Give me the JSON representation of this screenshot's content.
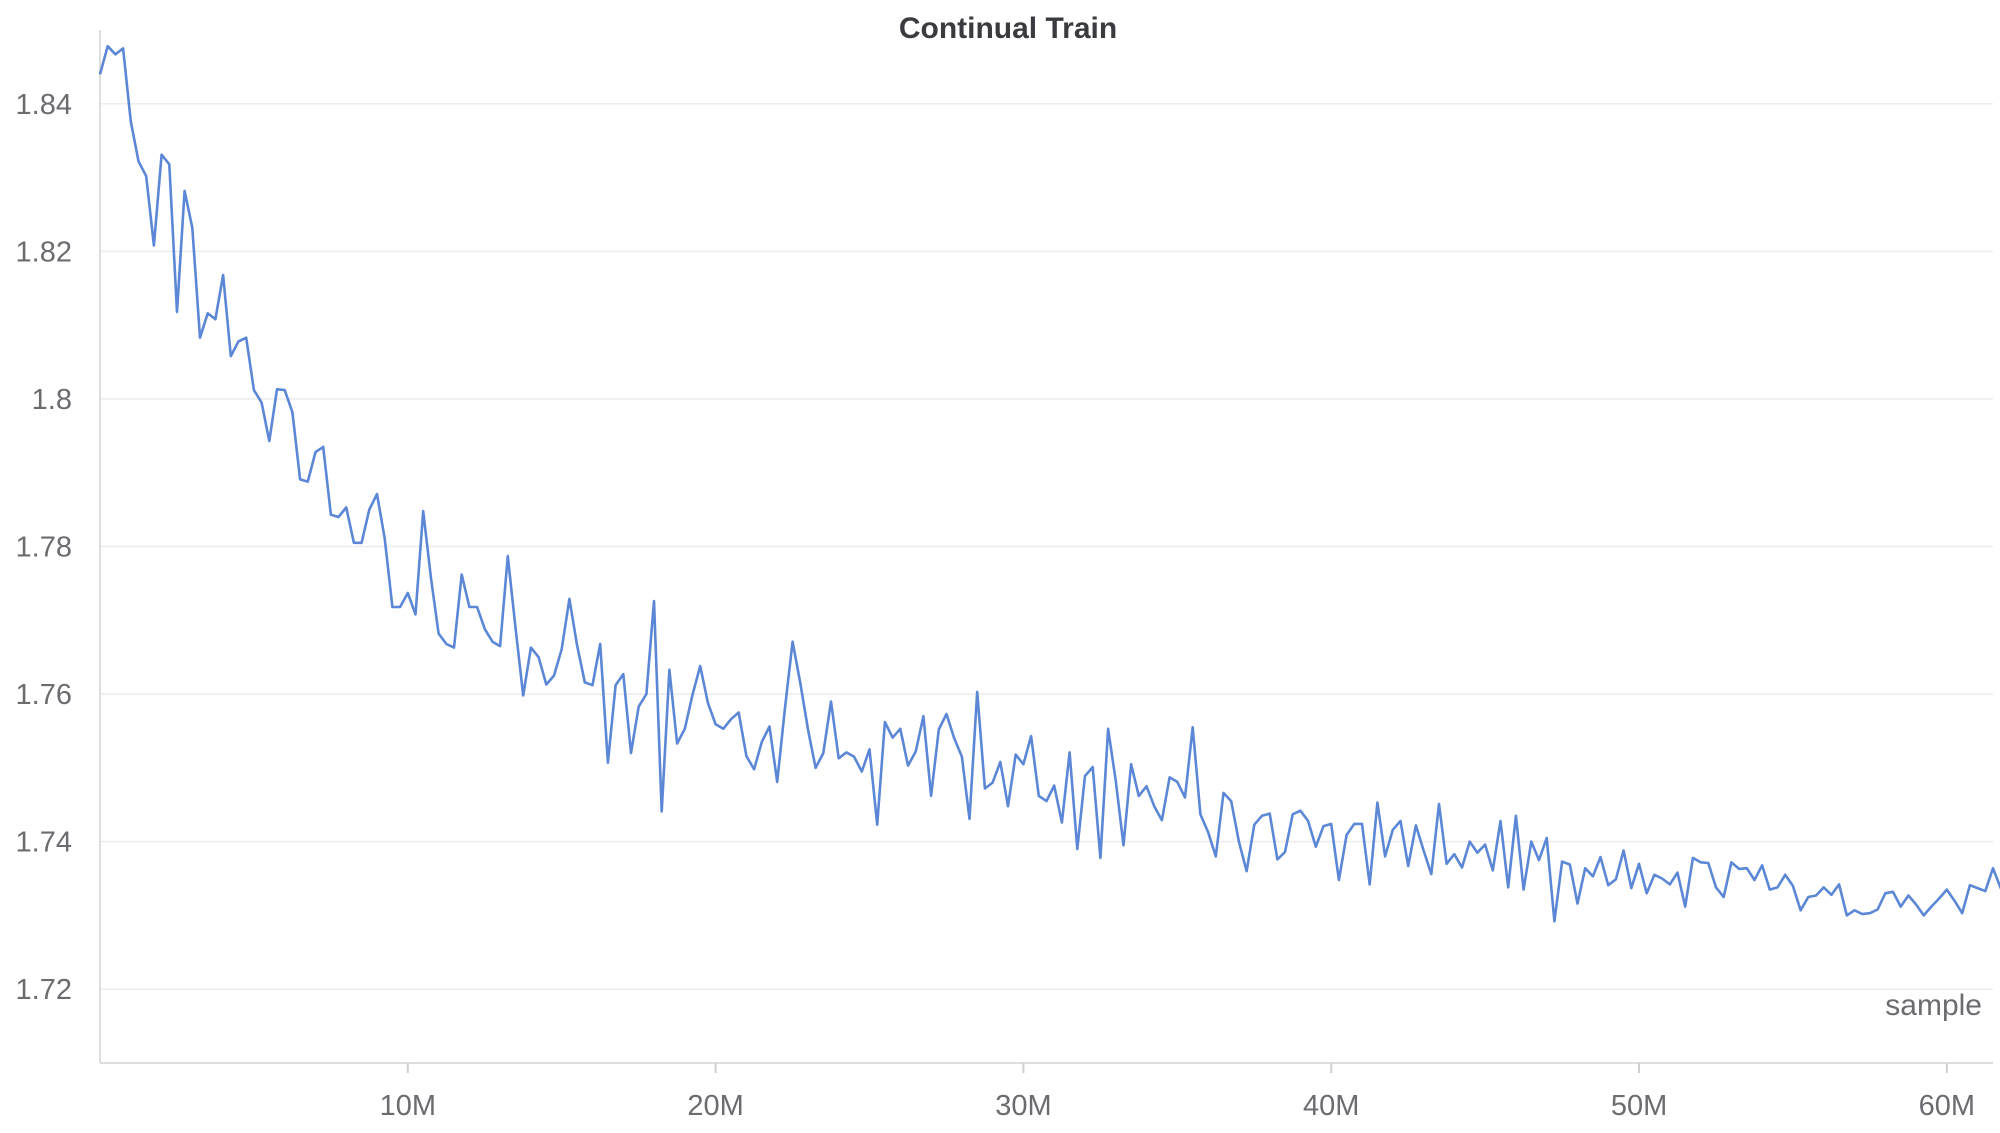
{
  "chart_data": {
    "type": "line",
    "title": "Continual Train",
    "xlabel": "sample",
    "ylabel": "",
    "xlim": [
      0,
      61500000
    ],
    "ylim": [
      1.71,
      1.85
    ],
    "grid": true,
    "x_ticks": [
      {
        "value": 10000000,
        "label": "10M"
      },
      {
        "value": 20000000,
        "label": "20M"
      },
      {
        "value": 30000000,
        "label": "30M"
      },
      {
        "value": 40000000,
        "label": "40M"
      },
      {
        "value": 50000000,
        "label": "50M"
      },
      {
        "value": 60000000,
        "label": "60M"
      }
    ],
    "y_ticks": [
      {
        "value": 1.72,
        "label": "1.72"
      },
      {
        "value": 1.74,
        "label": "1.74"
      },
      {
        "value": 1.76,
        "label": "1.76"
      },
      {
        "value": 1.78,
        "label": "1.78"
      },
      {
        "value": 1.8,
        "label": "1.8"
      },
      {
        "value": 1.82,
        "label": "1.82"
      },
      {
        "value": 1.84,
        "label": "1.84"
      }
    ],
    "series": [
      {
        "color": "#5b87d6",
        "x_start": 0,
        "x_step": 250000,
        "values": [
          1.844,
          1.8478,
          1.8467,
          1.8475,
          1.8376,
          1.8322,
          1.8302,
          1.8208,
          1.8331,
          1.8318,
          1.8118,
          1.8282,
          1.8232,
          1.8083,
          1.8116,
          1.8108,
          1.8168,
          1.8058,
          1.8078,
          1.8083,
          1.8012,
          1.7995,
          1.7943,
          1.8013,
          1.8012,
          1.7982,
          1.7891,
          1.7888,
          1.7928,
          1.7935,
          1.7843,
          1.784,
          1.7853,
          1.7805,
          1.7805,
          1.785,
          1.7871,
          1.7811,
          1.7718,
          1.7718,
          1.7737,
          1.7708,
          1.7848,
          1.7758,
          1.7682,
          1.7668,
          1.7663,
          1.7762,
          1.7718,
          1.7718,
          1.7688,
          1.7671,
          1.7665,
          1.7787,
          1.769,
          1.7598,
          1.7663,
          1.765,
          1.7613,
          1.7625,
          1.7661,
          1.7729,
          1.7666,
          1.7616,
          1.7612,
          1.7668,
          1.7507,
          1.7612,
          1.7627,
          1.752,
          1.7583,
          1.76,
          1.7726,
          1.7441,
          1.7633,
          1.7533,
          1.7553,
          1.7599,
          1.7638,
          1.7588,
          1.7559,
          1.7553,
          1.7566,
          1.7575,
          1.7516,
          1.7498,
          1.7535,
          1.7556,
          1.7481,
          1.758,
          1.7671,
          1.7615,
          1.7552,
          1.75,
          1.752,
          1.759,
          1.7513,
          1.7521,
          1.7515,
          1.7495,
          1.7525,
          1.7423,
          1.7562,
          1.7541,
          1.7553,
          1.7503,
          1.7522,
          1.757,
          1.7462,
          1.7552,
          1.7573,
          1.754,
          1.7515,
          1.7431,
          1.7603,
          1.7472,
          1.748,
          1.7508,
          1.7448,
          1.7518,
          1.7505,
          1.7543,
          1.7462,
          1.7455,
          1.7476,
          1.7426,
          1.7521,
          1.739,
          1.7489,
          1.7501,
          1.7378,
          1.7553,
          1.7482,
          1.7395,
          1.7505,
          1.7462,
          1.7475,
          1.7448,
          1.7429,
          1.7487,
          1.7481,
          1.746,
          1.7555,
          1.7437,
          1.7413,
          1.738,
          1.7466,
          1.7455,
          1.74,
          1.736,
          1.7423,
          1.7435,
          1.7438,
          1.7376,
          1.7386,
          1.7437,
          1.7442,
          1.7428,
          1.7393,
          1.7421,
          1.7424,
          1.7348,
          1.7409,
          1.7424,
          1.7424,
          1.7342,
          1.7453,
          1.738,
          1.7416,
          1.7428,
          1.7367,
          1.7422,
          1.7388,
          1.7356,
          1.7451,
          1.737,
          1.7383,
          1.7365,
          1.74,
          1.7385,
          1.7396,
          1.7361,
          1.7428,
          1.7338,
          1.7435,
          1.7335,
          1.74,
          1.7375,
          1.7405,
          1.7292,
          1.7373,
          1.7369,
          1.7316,
          1.7364,
          1.7353,
          1.7379,
          1.7341,
          1.7349,
          1.7388,
          1.7337,
          1.737,
          1.733,
          1.7355,
          1.735,
          1.7342,
          1.7358,
          1.7312,
          1.7378,
          1.7372,
          1.7371,
          1.7338,
          1.7325,
          1.7372,
          1.7363,
          1.7364,
          1.7348,
          1.7368,
          1.7335,
          1.7338,
          1.7355,
          1.734,
          1.7307,
          1.7325,
          1.7327,
          1.7338,
          1.7328,
          1.7342,
          1.73,
          1.7307,
          1.7302,
          1.7303,
          1.7308,
          1.733,
          1.7332,
          1.7312,
          1.7327,
          1.7315,
          1.73,
          1.7312,
          1.7323,
          1.7335,
          1.732,
          1.7303,
          1.7341,
          1.7337,
          1.7333,
          1.7364,
          1.7337,
          1.7394,
          1.74
        ]
      }
    ]
  }
}
